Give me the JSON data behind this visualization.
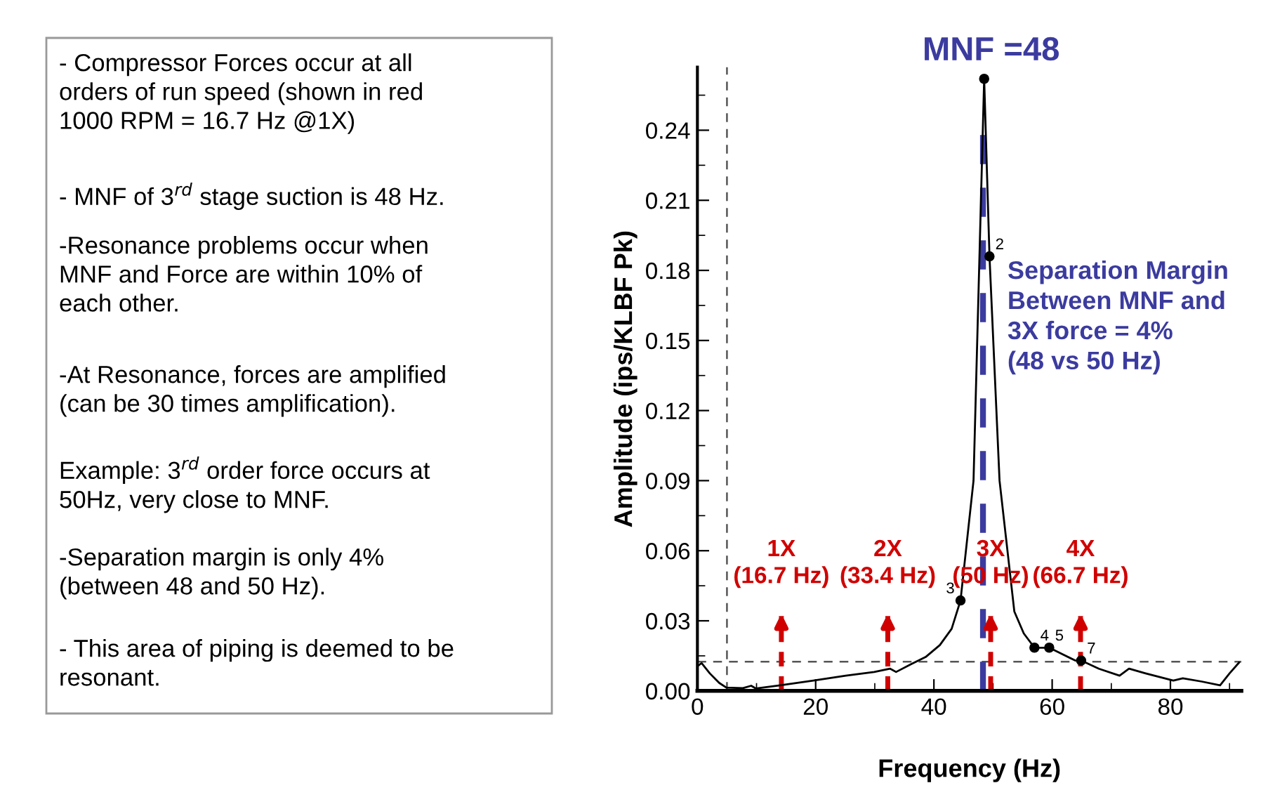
{
  "chart_data": {
    "type": "line",
    "xlabel": "Frequency (Hz)",
    "ylabel": "Amplitude (ips/KLBF Pk)",
    "xlim": [
      0,
      92
    ],
    "ylim": [
      0,
      0.267
    ],
    "xticks": [
      0,
      20,
      40,
      60,
      80
    ],
    "yticks": [
      {
        "value": 0,
        "label": "0.00"
      },
      0.03,
      0.06,
      0.09,
      0.12,
      0.15,
      0.18,
      0.21,
      0.24
    ],
    "grid": false,
    "series": [
      {
        "color": "#000000",
        "marker": "none",
        "line_style": "solid",
        "x": [
          0,
          0.7,
          2.1,
          3.7,
          4.9,
          7.7,
          9.1,
          9.9,
          14,
          19.6,
          25.1,
          29.9,
          32.6,
          33.6,
          36.2,
          38.6,
          41,
          43,
          44.5,
          46.7,
          48.5,
          49.4,
          51.1,
          53.6,
          55.2,
          57.0,
          59.5,
          61.9,
          63.9,
          64.9,
          67.9,
          71.4,
          73,
          75.8,
          80.5,
          82.1,
          85.3,
          88.4,
          90,
          91.6
        ],
        "values": [
          0.0105,
          0.0119,
          0.0075,
          0.0034,
          0.0014,
          0.0012,
          0.0022,
          0.001,
          0.0024,
          0.0044,
          0.0065,
          0.0081,
          0.0095,
          0.0081,
          0.0115,
          0.0145,
          0.0196,
          0.0266,
          0.0387,
          0.09,
          0.262,
          0.186,
          0.09,
          0.034,
          0.0246,
          0.0185,
          0.0185,
          0.0155,
          0.013,
          0.013,
          0.0095,
          0.0065,
          0.0095,
          0.0075,
          0.0044,
          0.0054,
          0.004,
          0.0024,
          0.0075,
          0.0121
        ]
      },
      {
        "type": "scatter",
        "color": "#000000",
        "marker": "circle",
        "x": [
          48.5,
          49.4,
          44.5,
          57.0,
          59.5,
          64.9
        ],
        "values": [
          0.262,
          0.186,
          0.0387,
          0.0185,
          0.0185,
          0.013
        ]
      }
    ],
    "ref_lines": [
      {
        "axis": "x",
        "value": 5,
        "color": "#555555",
        "line_style": "dashed"
      },
      {
        "axis": "y",
        "value": 0.0125,
        "color": "#555555",
        "line_style": "dashed"
      },
      {
        "axis": "x",
        "value": 48.3,
        "color": "#3b3b9f",
        "line_style": "dashed"
      },
      {
        "axis": "x",
        "value": 14.2,
        "color": "#d00000",
        "line_style": "dashed",
        "label": "1X\n(16.7 Hz)"
      },
      {
        "axis": "x",
        "value": 32.2,
        "color": "#d00000",
        "line_style": "dashed",
        "label": "2X\n(33.4 Hz)"
      },
      {
        "axis": "x",
        "value": 49.6,
        "color": "#d00000",
        "line_style": "dashed",
        "label": "3X\n(50 Hz)"
      },
      {
        "axis": "x",
        "value": 64.8,
        "color": "#d00000",
        "line_style": "dashed",
        "label": "4X\n(66.7 Hz)"
      }
    ],
    "annotations": [
      "- Compressor Forces occur at all\norders of run speed (shown in red\n1000 RPM = 16.7 Hz @1X)",
      "- MNF of 3$^{rd}$ stage suction is 48 Hz.",
      "-Resonance problems occur when\nMNF and Force are within 10% of\neach other.",
      "-At Resonance, forces are amplified\n(can be 30 times amplification).",
      "Example: 3$^{rd}$ order force occurs at\n50Hz, very close to MNF.",
      "-Separation margin is only 4%\n(between 48 and 50 Hz).",
      "- This area of piping is deemed to be\nresonant.",
      "Separation Margin\nBetween MNF and\n3X force = 4%\n(48 vs 50 Hz)",
      "MNF =48",
      {
        "text": "2",
        "x": 49.4,
        "y": 0.186
      },
      {
        "text": "3",
        "x": 44.5,
        "y": 0.0387
      },
      {
        "text": "4",
        "x": 57.0,
        "y": 0.0185
      },
      {
        "text": "5",
        "x": 59.5,
        "y": 0.0185
      },
      {
        "text": "7",
        "x": 64.9,
        "y": 0.013
      }
    ]
  }
}
